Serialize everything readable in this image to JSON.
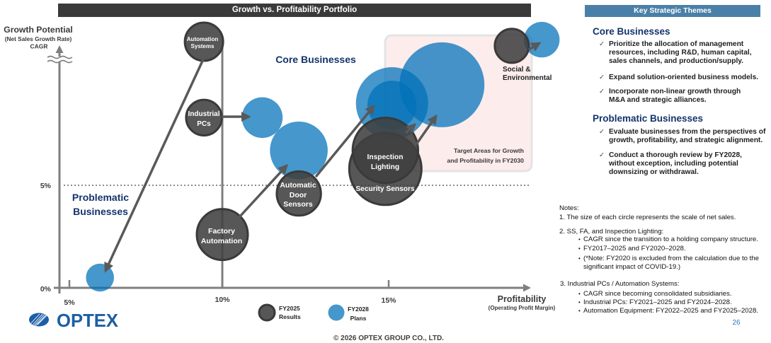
{
  "title_bar": {
    "title": "Growth vs. Profitability Portfolio"
  },
  "chart_data": {
    "type": "scatter",
    "variant": "bubble",
    "title": "Growth vs. Profitability Portfolio",
    "ylabel": "Growth Potential",
    "ylabel_note": "(Net Sales Growth Rate)",
    "ylabel_unit": "CAGR",
    "xlabel": "Profitability",
    "xlabel_note": "(Operating Profit Margin)",
    "x_ticks": [
      {
        "value": 5,
        "label": "5%"
      },
      {
        "value": 10,
        "label": "10%"
      },
      {
        "value": 15,
        "label": "15%"
      }
    ],
    "y_ticks": [
      {
        "value": 0,
        "label": "0%"
      },
      {
        "value": 5,
        "label": "5%"
      }
    ],
    "xlim": [
      4.5,
      20
    ],
    "ylim": [
      0,
      12.5
    ],
    "y_axis_break": true,
    "grid": false,
    "reference_lines": [
      {
        "axis": "y",
        "value": 5,
        "style": "dotted"
      },
      {
        "axis": "x",
        "value": 10,
        "style": "solid"
      }
    ],
    "size_meaning": "Relative scale of net sales",
    "series": [
      {
        "name": "FY2025 Results",
        "color": "#575757",
        "points": [
          {
            "business": "Automation Systems",
            "label_lines": [
              "Automation",
              "Systems"
            ],
            "x": 9.4,
            "y": 12.0,
            "size": 0.45
          },
          {
            "business": "Industrial PCs",
            "label_lines": [
              "Industrial",
              "PCs"
            ],
            "x": 9.4,
            "y": 8.3,
            "size": 0.42
          },
          {
            "business": "Factory Automation",
            "label_lines": [
              "Factory",
              "Automation"
            ],
            "x": 10.0,
            "y": 2.6,
            "size": 0.6
          },
          {
            "business": "Automatic Door Sensors",
            "label_lines": [
              "Automatic",
              "Door",
              "Sensors"
            ],
            "x": 12.3,
            "y": 4.6,
            "size": 0.52
          },
          {
            "business": "Inspection Lighting",
            "label_lines": [
              "Inspection",
              "Lighting"
            ],
            "x": 14.9,
            "y": 6.7,
            "size": 0.77
          },
          {
            "business": "Security Sensors",
            "label_lines": [
              "Security Sensors"
            ],
            "x": 14.9,
            "y": 5.8,
            "size": 0.85
          },
          {
            "business": "Social & Environmental",
            "label_lines": [
              "Social &",
              "Environmental"
            ],
            "x": 18.7,
            "y": 11.8,
            "size": 0.4
          }
        ]
      },
      {
        "name": "FY2028 Plans",
        "color": "#4597cc",
        "points": [
          {
            "business": "Automation Systems",
            "x": 6.0,
            "y": 0.5,
            "size": 0.33
          },
          {
            "business": "Industrial PCs",
            "x": 11.2,
            "y": 8.3,
            "size": 0.48
          },
          {
            "business": "Factory Automation",
            "x": 12.3,
            "y": 6.7,
            "size": 0.68
          },
          {
            "business": "Automatic Door Sensors",
            "x": 15.1,
            "y": 8.9,
            "size": 0.58
          },
          {
            "business": "Inspection Lighting",
            "x": 15.1,
            "y": 9.0,
            "size": 0.85
          },
          {
            "business": "Security Sensors",
            "x": 16.6,
            "y": 9.9,
            "size": 1.0
          },
          {
            "business": "Social & Environmental",
            "x": 19.6,
            "y": 12.1,
            "size": 0.42
          }
        ]
      }
    ],
    "arrows": "Each business: FY2025 Results → FY2028 Plans",
    "regions": {
      "core": {
        "label": "Core Businesses"
      },
      "problematic": {
        "label_lines": [
          "Problematic",
          "Businesses"
        ]
      },
      "target": {
        "label_lines": [
          "Target Areas for Growth",
          "and Profitability in FY2030"
        ],
        "fill": "#fcecec"
      }
    },
    "legend": {
      "placement": "bottom-center",
      "items": [
        {
          "label_lines": [
            "FY2025",
            "Results"
          ],
          "color": "#575757"
        },
        {
          "label_lines": [
            "FY2028",
            "Plans"
          ],
          "color": "#4597cc"
        }
      ]
    }
  },
  "themes": {
    "header": "Key Strategic Themes",
    "check_icon": "✓",
    "sections": [
      {
        "heading": "Core Businesses",
        "bullets": [
          {
            "lines": [
              "Prioritize the allocation of management",
              "resources, including R&D, human capital,",
              "sales channels, and production/supply."
            ]
          },
          {
            "lines": [
              "Expand solution-oriented business models."
            ]
          },
          {
            "lines": [
              "Incorporate non-linear growth through",
              "M&A and strategic alliances."
            ]
          }
        ]
      },
      {
        "heading": "Problematic Businesses",
        "bullets": [
          {
            "lines": [
              "Evaluate businesses from the perspectives of",
              "growth, profitability, and strategic alignment."
            ]
          },
          {
            "lines": [
              "Conduct a thorough review by FY2028,",
              "without exception, including potential",
              "downsizing or withdrawal."
            ]
          }
        ]
      }
    ]
  },
  "notes": {
    "title": "Notes:",
    "bullet_icon": "•",
    "items": [
      {
        "text": "1. The size of each circle represents the scale of net sales.",
        "bullets": []
      },
      {
        "text": "2. SS, FA, and Inspection Lighting:",
        "bullets": [
          [
            "CAGR since the transition to a holding company structure."
          ],
          [
            "FY2017–2025 and FY2020–2028."
          ],
          [
            "(*Note: FY2020 is excluded from the calculation due to the",
            "significant impact of COVID-19.)"
          ]
        ]
      },
      {
        "text": "3. Industrial PCs / Automation Systems:",
        "bullets": [
          [
            "CAGR since becoming consolidated subsidiaries."
          ],
          [
            "Industrial PCs: FY2021–2025 and FY2024–2028."
          ],
          [
            "Automation Equipment: FY2022–2025 and FY2025–2028."
          ]
        ]
      }
    ]
  },
  "footer": {
    "logo_text": "OPTEX",
    "copyright": "© 2026 OPTEX GROUP CO., LTD.",
    "page_number": "26"
  },
  "colors": {
    "title_bar": "#3a3a3a",
    "themes_header": "#4a80a8",
    "heading_navy": "#14336b",
    "brand_blue": "#1c5ea5",
    "page_number": "#2e75b6"
  }
}
